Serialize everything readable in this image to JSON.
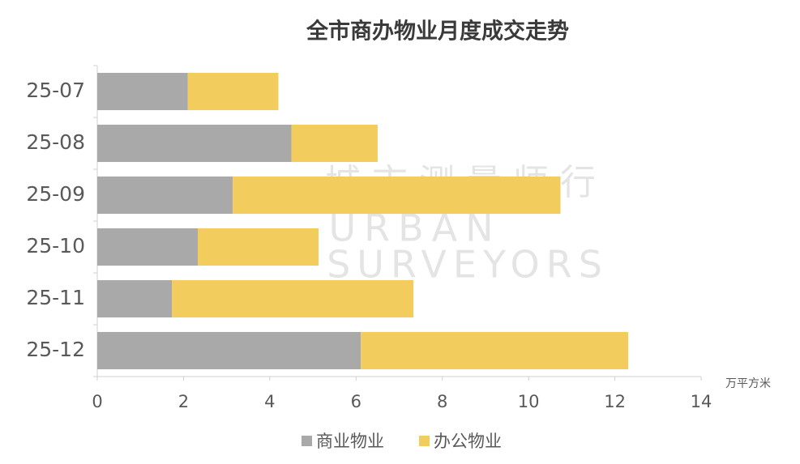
{
  "chart_data": {
    "type": "stacked-barh",
    "title": "全市商办物业月度成交走势",
    "x_label": "万平方米",
    "categories": [
      "25-07",
      "25-08",
      "25-09",
      "25-10",
      "25-11",
      "25-12"
    ],
    "series": [
      {
        "name": "商业物业",
        "color": "#a9a9a9",
        "values": [
          2.1,
          4.5,
          3.14,
          2.33,
          1.73,
          6.11
        ]
      },
      {
        "name": "办公物业",
        "color": "#f2cd5d",
        "values": [
          2.1,
          2.0,
          7.6,
          2.8,
          5.6,
          6.2
        ]
      }
    ],
    "xlim": [
      0,
      14
    ],
    "xticks": [
      0,
      2,
      4,
      6,
      8,
      10,
      12,
      14
    ],
    "legend": "bottom",
    "watermark": [
      "城市测量师行",
      "URBAN",
      "SURVEYORS"
    ]
  }
}
